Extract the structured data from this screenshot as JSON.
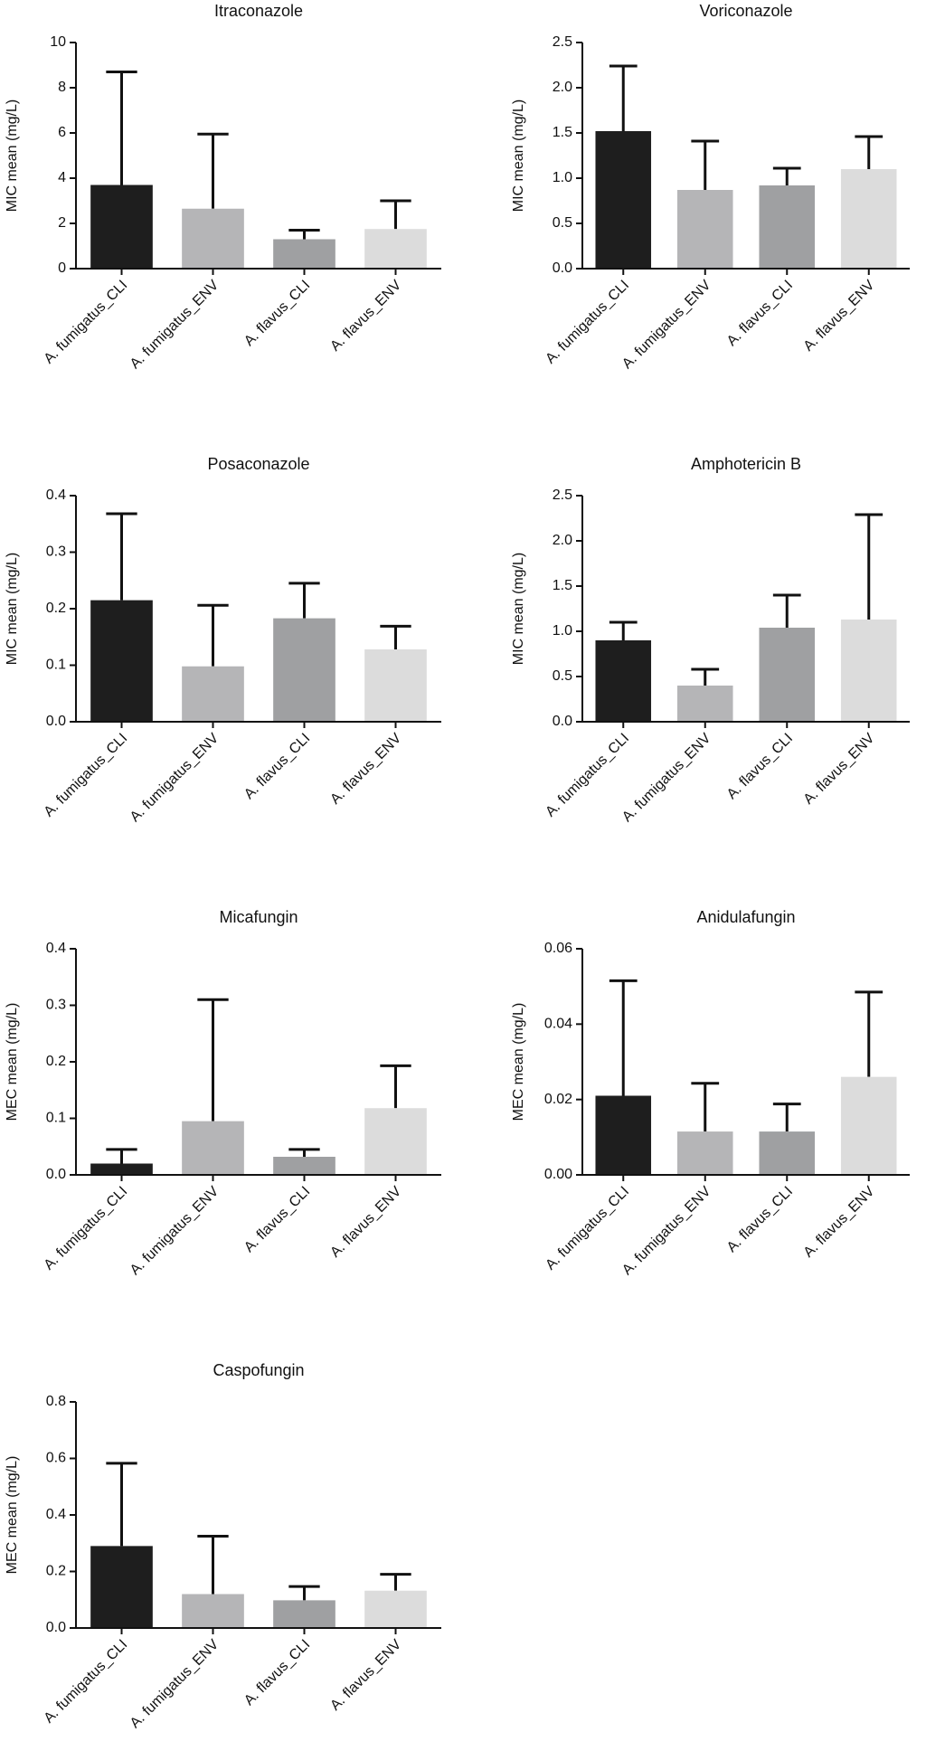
{
  "chart_data": [
    {
      "type": "bar",
      "title": "Itraconazole",
      "y_label": "MIC mean (mg/L)",
      "categories": [
        "A. fumigatus_CLI",
        "A. fumigatus_ENV",
        "A. flavus_CLI",
        "A. flavus_ENV"
      ],
      "values": [
        3.7,
        2.65,
        1.3,
        1.75
      ],
      "errors": [
        5.0,
        3.3,
        0.4,
        1.25
      ],
      "colors": [
        "#1e1e1e",
        "#b5b5b7",
        "#9fa0a2",
        "#dcdcdc"
      ],
      "ylim": [
        0,
        10
      ],
      "yticks": [
        0,
        2,
        4,
        6,
        8,
        10
      ]
    },
    {
      "type": "bar",
      "title": "Voriconazole",
      "y_label": "MIC mean (mg/L)",
      "categories": [
        "A. fumigatus_CLI",
        "A. fumigatus_ENV",
        "A. flavus_CLI",
        "A. flavus_ENV"
      ],
      "values": [
        1.52,
        0.87,
        0.92,
        1.1
      ],
      "errors": [
        0.72,
        0.54,
        0.19,
        0.36
      ],
      "colors": [
        "#1e1e1e",
        "#b5b5b7",
        "#9fa0a2",
        "#dcdcdc"
      ],
      "ylim": [
        0,
        2.5
      ],
      "yticks": [
        {
          "value": 0,
          "label": "0.0"
        },
        0.5,
        {
          "value": 1,
          "label": "1.0"
        },
        1.5,
        {
          "value": 2,
          "label": "2.0"
        },
        2.5
      ]
    },
    {
      "type": "bar",
      "title": "Posaconazole",
      "y_label": "MIC mean (mg/L)",
      "categories": [
        "A. fumigatus_CLI",
        "A. fumigatus_ENV",
        "A. flavus_CLI",
        "A. flavus_ENV"
      ],
      "values": [
        0.215,
        0.098,
        0.183,
        0.128
      ],
      "errors": [
        0.153,
        0.108,
        0.062,
        0.041
      ],
      "colors": [
        "#1e1e1e",
        "#b5b5b7",
        "#9fa0a2",
        "#dcdcdc"
      ],
      "ylim": [
        0,
        0.4
      ],
      "yticks": [
        {
          "value": 0,
          "label": "0.0"
        },
        0.1,
        0.2,
        0.3,
        0.4
      ]
    },
    {
      "type": "bar",
      "title": "Amphotericin B",
      "y_label": "MIC mean (mg/L)",
      "categories": [
        "A. fumigatus_CLI",
        "A. fumigatus_ENV",
        "A. flavus_CLI",
        "A. flavus_ENV"
      ],
      "values": [
        0.9,
        0.4,
        1.04,
        1.13
      ],
      "errors": [
        0.2,
        0.18,
        0.36,
        1.16
      ],
      "colors": [
        "#1e1e1e",
        "#b5b5b7",
        "#9fa0a2",
        "#dcdcdc"
      ],
      "ylim": [
        0,
        2.5
      ],
      "yticks": [
        {
          "value": 0,
          "label": "0.0"
        },
        0.5,
        {
          "value": 1,
          "label": "1.0"
        },
        1.5,
        {
          "value": 2,
          "label": "2.0"
        },
        2.5
      ]
    },
    {
      "type": "bar",
      "title": "Micafungin",
      "y_label": "MEC mean (mg/L)",
      "categories": [
        "A. fumigatus_CLI",
        "A. fumigatus_ENV",
        "A. flavus_CLI",
        "A. flavus_ENV"
      ],
      "values": [
        0.02,
        0.095,
        0.032,
        0.118
      ],
      "errors": [
        0.025,
        0.215,
        0.013,
        0.075
      ],
      "colors": [
        "#1e1e1e",
        "#b5b5b7",
        "#9fa0a2",
        "#dcdcdc"
      ],
      "ylim": [
        0,
        0.4
      ],
      "yticks": [
        {
          "value": 0,
          "label": "0.0"
        },
        0.1,
        0.2,
        0.3,
        0.4
      ]
    },
    {
      "type": "bar",
      "title": "Anidulafungin",
      "y_label": "MEC mean (mg/L)",
      "categories": [
        "A. fumigatus_CLI",
        "A. fumigatus_ENV",
        "A. flavus_CLI",
        "A. flavus_ENV"
      ],
      "values": [
        0.021,
        0.0115,
        0.0115,
        0.026
      ],
      "errors": [
        0.0305,
        0.0128,
        0.0073,
        0.0225
      ],
      "colors": [
        "#1e1e1e",
        "#b5b5b7",
        "#9fa0a2",
        "#dcdcdc"
      ],
      "ylim": [
        0,
        0.06
      ],
      "yticks": [
        {
          "value": 0,
          "label": "0.00"
        },
        0.02,
        0.04,
        0.06
      ]
    },
    {
      "type": "bar",
      "title": "Caspofungin",
      "y_label": "MEC mean (mg/L)",
      "categories": [
        "A. fumigatus_CLI",
        "A. fumigatus_ENV",
        "A. flavus_CLI",
        "A. flavus_ENV"
      ],
      "values": [
        0.29,
        0.12,
        0.098,
        0.132
      ],
      "errors": [
        0.293,
        0.205,
        0.049,
        0.058
      ],
      "colors": [
        "#1e1e1e",
        "#b5b5b7",
        "#9fa0a2",
        "#dcdcdc"
      ],
      "ylim": [
        0,
        0.8
      ],
      "yticks": [
        {
          "value": 0,
          "label": "0.0"
        },
        0.2,
        0.4,
        0.6,
        0.8
      ]
    }
  ]
}
